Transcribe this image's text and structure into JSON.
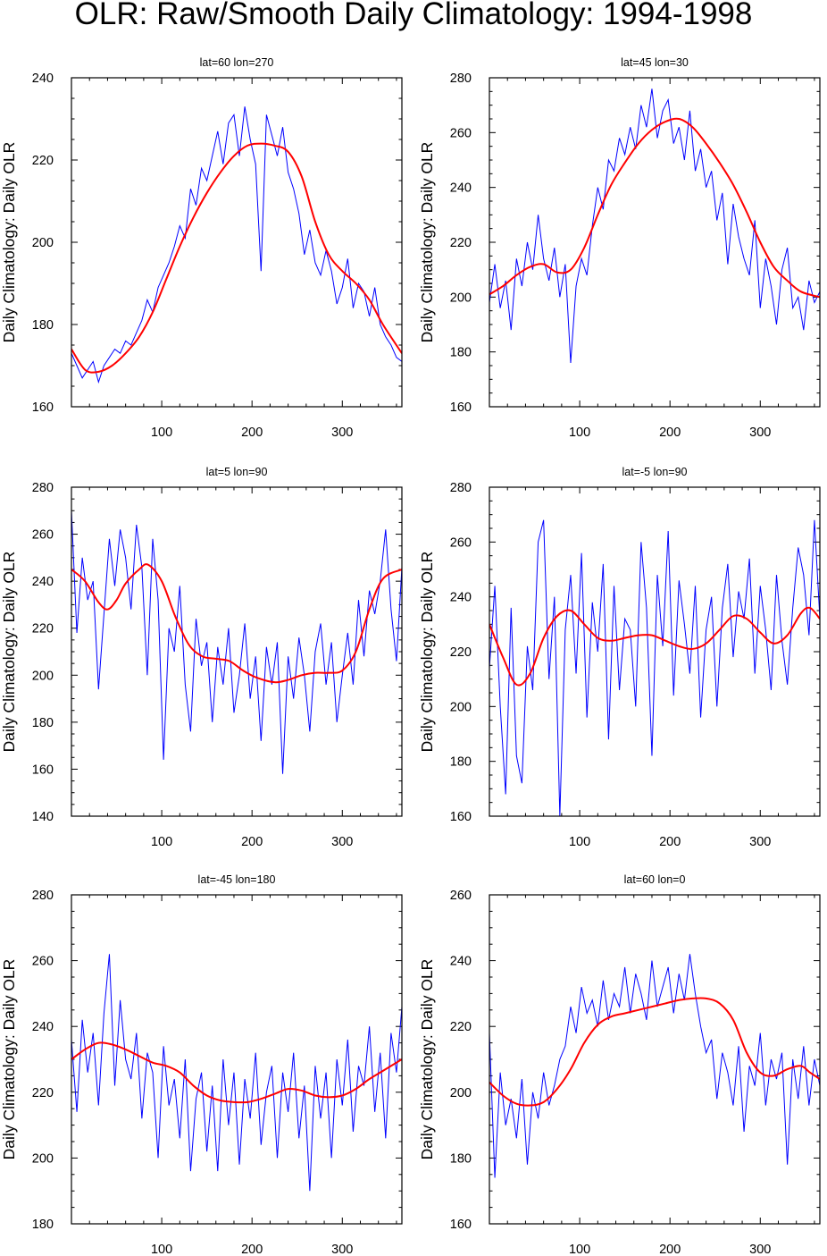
{
  "title": "OLR: Raw/Smooth Daily Climatology: 1994-1998",
  "colors": {
    "raw": "#0000ff",
    "smooth": "#ff0000"
  },
  "chart_data": [
    {
      "type": "line",
      "title": "lat=60  lon=270",
      "ylabel": "Daily Climatology: Daily OLR",
      "xlabel": "",
      "xlim": [
        0,
        366
      ],
      "ylim": [
        160,
        240
      ],
      "xticks": [
        100,
        200,
        300
      ],
      "yticks": [
        160,
        180,
        200,
        220,
        240
      ],
      "series": [
        {
          "name": "raw",
          "x_step": 6,
          "values": [
            173,
            170,
            167,
            169,
            171,
            166,
            170,
            172,
            174,
            173,
            176,
            175,
            178,
            181,
            186,
            183,
            189,
            192,
            195,
            199,
            204,
            201,
            213,
            209,
            218,
            215,
            221,
            227,
            219,
            229,
            231,
            221,
            233,
            225,
            219,
            193,
            231,
            226,
            221,
            228,
            217,
            213,
            207,
            197,
            203,
            195,
            192,
            198,
            193,
            185,
            189,
            196,
            184,
            190,
            188,
            182,
            189,
            180,
            177,
            175,
            172,
            171
          ]
        },
        {
          "name": "smooth",
          "x": [
            0,
            15,
            30,
            45,
            60,
            75,
            90,
            105,
            120,
            135,
            150,
            165,
            180,
            195,
            210,
            225,
            240,
            255,
            270,
            285,
            300,
            315,
            330,
            345,
            366
          ],
          "values": [
            174,
            169,
            168.5,
            170,
            173,
            177,
            183,
            191,
            199,
            206,
            212,
            217,
            221,
            223.5,
            224,
            223.5,
            222,
            216,
            205,
            197,
            193,
            190,
            186,
            180,
            173
          ]
        }
      ]
    },
    {
      "type": "line",
      "title": "lat=45  lon=30",
      "ylabel": "Daily Climatology: Daily OLR",
      "xlabel": "",
      "xlim": [
        0,
        366
      ],
      "ylim": [
        160,
        280
      ],
      "xticks": [
        100,
        200,
        300
      ],
      "yticks": [
        160,
        180,
        200,
        220,
        240,
        260,
        280
      ],
      "series": [
        {
          "name": "raw",
          "x_step": 6,
          "values": [
            198,
            212,
            196,
            206,
            188,
            214,
            204,
            220,
            210,
            230,
            214,
            206,
            218,
            200,
            212,
            176,
            204,
            214,
            208,
            226,
            240,
            232,
            250,
            246,
            258,
            252,
            262,
            254,
            270,
            262,
            276,
            258,
            268,
            272,
            256,
            262,
            250,
            268,
            246,
            254,
            240,
            246,
            228,
            238,
            212,
            234,
            222,
            214,
            208,
            228,
            196,
            214,
            204,
            190,
            210,
            218,
            196,
            200,
            188,
            206,
            198,
            202
          ]
        },
        {
          "name": "smooth",
          "x": [
            0,
            15,
            30,
            45,
            60,
            75,
            90,
            105,
            120,
            135,
            150,
            165,
            180,
            195,
            210,
            225,
            240,
            255,
            270,
            285,
            300,
            315,
            330,
            345,
            366
          ],
          "values": [
            201,
            204,
            208,
            211,
            212,
            209,
            210,
            218,
            230,
            241,
            249,
            256,
            261,
            264,
            265,
            262,
            256,
            249,
            241,
            231,
            220,
            211,
            206,
            202,
            200
          ]
        }
      ]
    },
    {
      "type": "line",
      "title": "lat=5  lon=90",
      "ylabel": "Daily Climatology: Daily OLR",
      "xlabel": "",
      "xlim": [
        0,
        366
      ],
      "ylim": [
        140,
        280
      ],
      "xticks": [
        100,
        200,
        300
      ],
      "yticks": [
        140,
        160,
        180,
        200,
        220,
        240,
        260,
        280
      ],
      "series": [
        {
          "name": "raw",
          "x_step": 6,
          "values": [
            270,
            218,
            250,
            232,
            240,
            194,
            226,
            258,
            238,
            262,
            250,
            228,
            264,
            246,
            200,
            258,
            232,
            164,
            220,
            210,
            238,
            196,
            176,
            224,
            204,
            214,
            180,
            212,
            196,
            220,
            184,
            200,
            222,
            190,
            208,
            172,
            212,
            196,
            214,
            158,
            208,
            190,
            216,
            200,
            176,
            210,
            222,
            196,
            214,
            180,
            200,
            218,
            196,
            232,
            208,
            236,
            226,
            240,
            262,
            228,
            206,
            246
          ]
        },
        {
          "name": "smooth",
          "x": [
            0,
            15,
            30,
            40,
            50,
            60,
            75,
            85,
            100,
            115,
            130,
            145,
            160,
            175,
            190,
            205,
            225,
            240,
            255,
            270,
            285,
            300,
            315,
            330,
            345,
            366
          ],
          "values": [
            245,
            240,
            231,
            228,
            232,
            239,
            245,
            247,
            240,
            225,
            213,
            208,
            207,
            206,
            202,
            199,
            197,
            198,
            200,
            201,
            201,
            202,
            210,
            228,
            241,
            245
          ]
        }
      ]
    },
    {
      "type": "line",
      "title": "lat=-5  lon=90",
      "ylabel": "Daily Climatology: Daily OLR",
      "xlabel": "",
      "xlim": [
        0,
        366
      ],
      "ylim": [
        160,
        280
      ],
      "xticks": [
        100,
        200,
        300
      ],
      "yticks": [
        160,
        180,
        200,
        220,
        240,
        260,
        280
      ],
      "series": [
        {
          "name": "raw",
          "x_step": 6,
          "values": [
            214,
            244,
            200,
            168,
            236,
            182,
            172,
            222,
            206,
            260,
            268,
            210,
            240,
            160,
            228,
            248,
            212,
            256,
            196,
            238,
            220,
            252,
            188,
            244,
            206,
            232,
            228,
            200,
            260,
            236,
            182,
            248,
            222,
            264,
            204,
            246,
            230,
            212,
            244,
            196,
            228,
            240,
            200,
            236,
            252,
            218,
            242,
            232,
            254,
            212,
            244,
            228,
            206,
            248,
            224,
            208,
            236,
            258,
            248,
            226,
            268,
            232
          ]
        },
        {
          "name": "smooth",
          "x": [
            0,
            15,
            30,
            45,
            60,
            75,
            90,
            105,
            120,
            135,
            150,
            165,
            180,
            195,
            210,
            225,
            240,
            255,
            270,
            285,
            300,
            315,
            330,
            345,
            355,
            366
          ],
          "values": [
            230,
            218,
            208,
            212,
            225,
            233,
            235,
            230,
            225,
            224,
            225,
            226,
            226,
            224,
            222,
            221,
            223,
            228,
            233,
            232,
            227,
            223,
            226,
            234,
            236,
            232
          ]
        }
      ]
    },
    {
      "type": "line",
      "title": "lat=-45  lon=180",
      "ylabel": "Daily Climatology: Daily OLR",
      "xlabel": "",
      "xlim": [
        0,
        366
      ],
      "ylim": [
        180,
        280
      ],
      "xticks": [
        100,
        200,
        300
      ],
      "yticks": [
        180,
        200,
        220,
        240,
        260,
        280
      ],
      "series": [
        {
          "name": "raw",
          "x_step": 6,
          "values": [
            236,
            214,
            242,
            226,
            238,
            216,
            244,
            262,
            222,
            248,
            230,
            224,
            238,
            212,
            232,
            226,
            200,
            234,
            216,
            224,
            206,
            230,
            196,
            218,
            226,
            202,
            222,
            196,
            230,
            210,
            226,
            198,
            224,
            212,
            232,
            204,
            220,
            228,
            200,
            226,
            214,
            232,
            206,
            222,
            190,
            228,
            212,
            226,
            200,
            230,
            216,
            236,
            208,
            228,
            222,
            240,
            214,
            232,
            206,
            238,
            226,
            246
          ]
        },
        {
          "name": "smooth",
          "x": [
            0,
            15,
            30,
            45,
            60,
            75,
            90,
            105,
            120,
            135,
            150,
            165,
            180,
            195,
            210,
            225,
            240,
            255,
            270,
            285,
            300,
            315,
            330,
            345,
            366
          ],
          "values": [
            230,
            233,
            235,
            234.5,
            233,
            231,
            229,
            228,
            226,
            222,
            219,
            217.5,
            217,
            217,
            218,
            219.5,
            221,
            220.5,
            219,
            218.5,
            219,
            221,
            224,
            226.5,
            230
          ]
        }
      ]
    },
    {
      "type": "line",
      "title": "lat=60  lon=0",
      "ylabel": "Daily Climatology: Daily OLR",
      "xlabel": "",
      "xlim": [
        0,
        366
      ],
      "ylim": [
        160,
        260
      ],
      "xticks": [
        100,
        200,
        300
      ],
      "yticks": [
        160,
        180,
        200,
        220,
        240,
        260
      ],
      "series": [
        {
          "name": "raw",
          "x_step": 6,
          "values": [
            218,
            174,
            206,
            190,
            198,
            186,
            204,
            178,
            200,
            192,
            206,
            196,
            202,
            210,
            214,
            226,
            218,
            232,
            224,
            228,
            220,
            234,
            222,
            230,
            226,
            238,
            224,
            236,
            230,
            222,
            240,
            226,
            232,
            238,
            224,
            236,
            228,
            242,
            230,
            220,
            212,
            216,
            198,
            212,
            206,
            196,
            214,
            188,
            208,
            202,
            218,
            196,
            210,
            204,
            212,
            178,
            210,
            198,
            214,
            196,
            210,
            202
          ]
        },
        {
          "name": "smooth",
          "x": [
            0,
            15,
            30,
            45,
            60,
            75,
            90,
            105,
            120,
            135,
            150,
            165,
            180,
            195,
            210,
            225,
            240,
            255,
            270,
            285,
            300,
            315,
            330,
            345,
            355,
            366
          ],
          "values": [
            203,
            199,
            196.5,
            196,
            197,
            201,
            207,
            215,
            220.5,
            223,
            224,
            225,
            226,
            227,
            228,
            228.5,
            228.5,
            227,
            222,
            212,
            206,
            205,
            207,
            208,
            206,
            204
          ]
        }
      ]
    }
  ]
}
